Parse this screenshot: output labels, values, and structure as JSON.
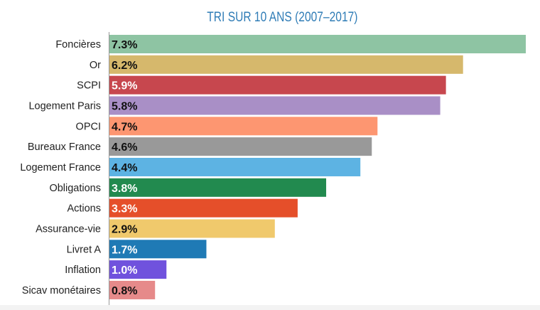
{
  "chart_data": {
    "type": "bar",
    "orientation": "horizontal",
    "title": "TRI SUR 10 ANS (2007–2017)",
    "categories": [
      "Foncières",
      "Or",
      "SCPI",
      "Logement Paris",
      "OPCI",
      "Bureaux France",
      "Logement France",
      "Obligations",
      "Actions",
      "Assurance-vie",
      "Livret A",
      "Inflation",
      "Sicav monétaires"
    ],
    "values": [
      7.3,
      6.2,
      5.9,
      5.8,
      4.7,
      4.6,
      4.4,
      3.8,
      3.3,
      2.9,
      1.7,
      1.0,
      0.8
    ],
    "data_labels": [
      "7.3%",
      "6.2%",
      "5.9%",
      "5.8%",
      "4.7%",
      "4.6%",
      "4.4%",
      "3.8%",
      "3.3%",
      "2.9%",
      "1.7%",
      "1.0%",
      "0.8%"
    ],
    "colors": [
      "#8ec4a3",
      "#d6b86c",
      "#c7474e",
      "#a98fc6",
      "#fd9671",
      "#999999",
      "#5db3e3",
      "#228a4f",
      "#e54f2a",
      "#f0c96c",
      "#1f7ab5",
      "#7052dd",
      "#e68a8a"
    ],
    "label_colors": [
      "#111111",
      "#111111",
      "#ffffff",
      "#111111",
      "#111111",
      "#111111",
      "#111111",
      "#ffffff",
      "#ffffff",
      "#111111",
      "#ffffff",
      "#ffffff",
      "#111111"
    ],
    "xlim": [
      0,
      7.3
    ],
    "xlabel": "",
    "ylabel": "",
    "grid": false,
    "legend": "none"
  }
}
